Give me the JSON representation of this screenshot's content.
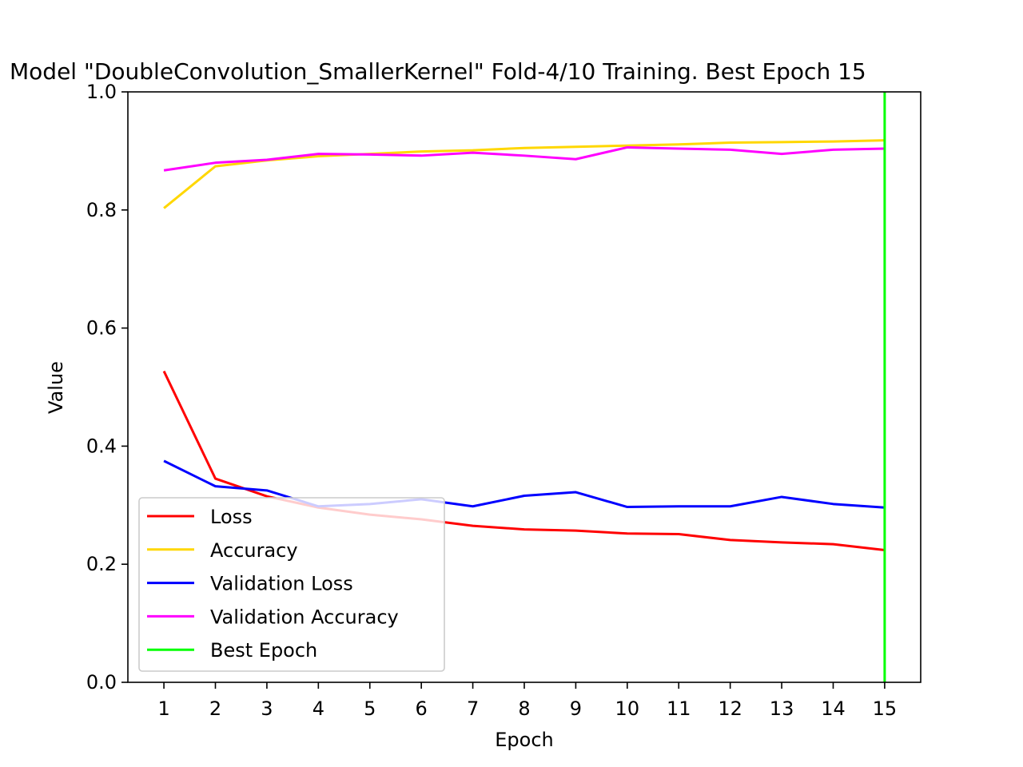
{
  "chart_data": {
    "type": "line",
    "title": "Model \"DoubleConvolution_SmallerKernel\" Fold-4/10 Training. Best Epoch 15",
    "xlabel": "Epoch",
    "ylabel": "Value",
    "xlim": [
      0.3,
      15.7
    ],
    "ylim": [
      0.0,
      1.0
    ],
    "x": [
      1,
      2,
      3,
      4,
      5,
      6,
      7,
      8,
      9,
      10,
      11,
      12,
      13,
      14,
      15
    ],
    "xticks": [
      "1",
      "2",
      "3",
      "4",
      "5",
      "6",
      "7",
      "8",
      "9",
      "10",
      "11",
      "12",
      "13",
      "14",
      "15"
    ],
    "yticks": [
      "0.0",
      "0.2",
      "0.4",
      "0.6",
      "0.8",
      "1.0"
    ],
    "ytick_values": [
      0.0,
      0.2,
      0.4,
      0.6,
      0.8,
      1.0
    ],
    "grid": false,
    "legend_position": "lower-left",
    "series": [
      {
        "name": "Loss",
        "color": "#ff0000",
        "values": [
          0.527,
          0.345,
          0.315,
          0.296,
          0.284,
          0.276,
          0.265,
          0.259,
          0.257,
          0.252,
          0.251,
          0.241,
          0.237,
          0.234,
          0.224
        ]
      },
      {
        "name": "Accuracy",
        "color": "#ffd700",
        "values": [
          0.803,
          0.874,
          0.884,
          0.891,
          0.895,
          0.899,
          0.901,
          0.905,
          0.907,
          0.909,
          0.911,
          0.914,
          0.915,
          0.916,
          0.918
        ]
      },
      {
        "name": "Validation Loss",
        "color": "#0000ff",
        "values": [
          0.375,
          0.332,
          0.325,
          0.298,
          0.302,
          0.31,
          0.298,
          0.316,
          0.322,
          0.297,
          0.298,
          0.298,
          0.314,
          0.302,
          0.296
        ]
      },
      {
        "name": "Validation  Accuracy",
        "color": "#ff00ff",
        "values": [
          0.867,
          0.88,
          0.885,
          0.895,
          0.894,
          0.892,
          0.897,
          0.892,
          0.886,
          0.906,
          0.904,
          0.902,
          0.895,
          0.902,
          0.904
        ]
      }
    ],
    "best_epoch": {
      "name": "Best Epoch",
      "color": "#00ff00",
      "x": 15
    }
  }
}
